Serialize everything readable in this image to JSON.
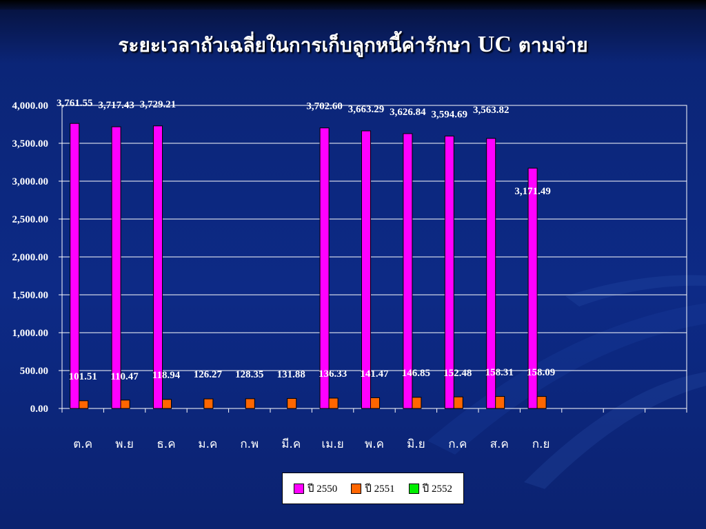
{
  "title": {
    "text": "ระยะเวลาถัวเฉลี่ยในการเก็บลูกหนี้ค่ารักษา",
    "emph": "UC",
    "suffix": "ตามจ่าย"
  },
  "colors": {
    "series_2550": "#ff00ff",
    "series_2551": "#ff6600",
    "series_2552": "#00ee00",
    "plot_border": "#ffffff",
    "text": "#ffffff"
  },
  "chart_data": {
    "type": "bar",
    "title": "ระยะเวลาถัวเฉลี่ยในการเก็บลูกหนี้ค่ารักษา UC ตามจ่าย",
    "categories": [
      "ต.ค",
      "พ.ย",
      "ธ.ค",
      "ม.ค",
      "ก.พ",
      "มี.ค",
      "เม.ย",
      "พ.ค",
      "มิ.ย",
      "ก.ค",
      "ส.ค",
      "ก.ย"
    ],
    "series": [
      {
        "name": "ปี 2550",
        "values": [
          3761.55,
          3717.43,
          3729.21,
          null,
          null,
          null,
          3702.6,
          3663.29,
          3626.84,
          3594.69,
          3563.82,
          3171.49
        ],
        "labels": [
          "3,761.55",
          "3,717.43",
          "3,729.21",
          null,
          null,
          null,
          "3,702.60",
          "3,663.29",
          "3,626.84",
          "3,594.69",
          "3,563.82",
          "3,171.49"
        ]
      },
      {
        "name": "ปี 2551",
        "values": [
          101.51,
          110.47,
          118.94,
          126.27,
          128.35,
          131.88,
          136.33,
          141.47,
          146.85,
          152.48,
          158.31,
          158.09
        ],
        "labels": [
          "101.51",
          "110.47",
          "118.94",
          "126.27",
          "128.35",
          "131.88",
          "136.33",
          "141.47",
          "146.85",
          "152.48",
          "158.31",
          "158.09"
        ]
      },
      {
        "name": "ปี 2552",
        "values": [
          null,
          null,
          null,
          null,
          null,
          null,
          null,
          null,
          null,
          null,
          null,
          null
        ],
        "labels": []
      }
    ],
    "slots": 15,
    "ylim": [
      0,
      4000
    ],
    "yticks": [
      0,
      500,
      1000,
      1500,
      2000,
      2500,
      3000,
      3500,
      4000
    ],
    "ytick_labels": [
      "0.00",
      "500.00",
      "1,000.00",
      "1,500.00",
      "2,000.00",
      "2,500.00",
      "3,000.00",
      "3,500.00",
      "4,000.00"
    ],
    "grid": true,
    "legend": "bottom-center"
  }
}
